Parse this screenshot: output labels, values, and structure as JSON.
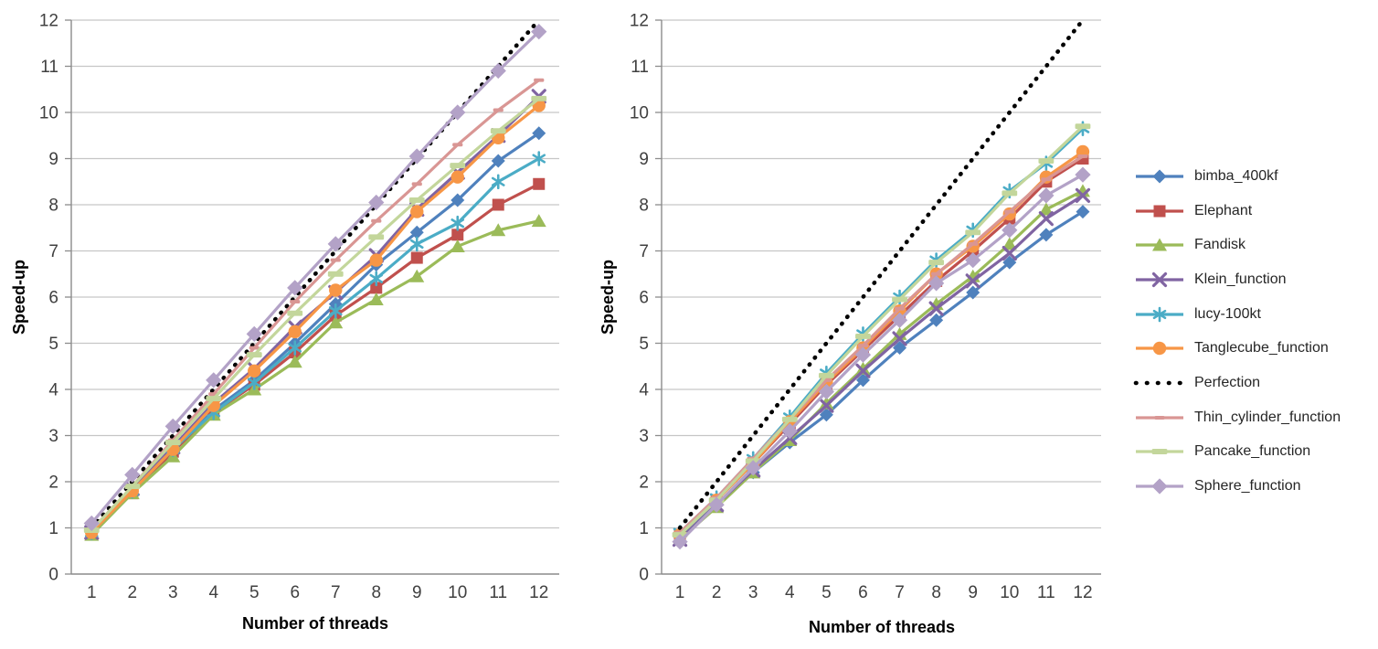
{
  "styles": {
    "background": "#FFFFFF",
    "grid_color": "#C6C6C6",
    "axis_color": "#8C8C8C",
    "tick_label_color": "#404040",
    "text_color": "#000000"
  },
  "chart_data": [
    {
      "type": "line",
      "title": "",
      "xlabel": "Number of threads",
      "ylabel": "Speed-up",
      "x": [
        1,
        2,
        3,
        4,
        5,
        6,
        7,
        8,
        9,
        10,
        11,
        12
      ],
      "ylim": [
        0,
        12
      ],
      "yticks": [
        0,
        1,
        2,
        3,
        4,
        5,
        6,
        7,
        8,
        9,
        10,
        11,
        12
      ],
      "grid": true,
      "legend_position": "right",
      "series": [
        {
          "name": "bimba_400kf",
          "color": "#4F81BD",
          "marker": "diamond",
          "marker_scale": 1,
          "values": [
            0.9,
            1.8,
            2.65,
            3.55,
            4.2,
            5.0,
            5.85,
            6.7,
            7.4,
            8.1,
            8.95,
            9.55
          ]
        },
        {
          "name": "Elephant",
          "color": "#C0504D",
          "marker": "square",
          "marker_scale": 1,
          "values": [
            0.9,
            1.75,
            2.65,
            3.5,
            4.1,
            4.8,
            5.6,
            6.2,
            6.85,
            7.35,
            8.0,
            8.45
          ]
        },
        {
          "name": "Fandisk",
          "color": "#9BBB59",
          "marker": "triangle",
          "marker_scale": 1,
          "values": [
            0.85,
            1.75,
            2.55,
            3.45,
            4.0,
            4.6,
            5.45,
            5.95,
            6.45,
            7.1,
            7.45,
            7.65
          ]
        },
        {
          "name": "Klein_function",
          "color": "#8064A2",
          "marker": "x",
          "marker_scale": 1,
          "values": [
            0.9,
            1.85,
            2.75,
            3.7,
            4.45,
            5.35,
            6.1,
            6.9,
            7.9,
            8.7,
            9.5,
            10.35
          ]
        },
        {
          "name": "lucy-100kt",
          "color": "#4BACC6",
          "marker": "asterisk",
          "marker_scale": 1,
          "values": [
            0.9,
            1.8,
            2.7,
            3.5,
            4.15,
            4.9,
            5.7,
            6.4,
            7.15,
            7.6,
            8.5,
            9.0
          ]
        },
        {
          "name": "Tanglecube_function",
          "color": "#F79646",
          "marker": "circle",
          "marker_scale": 1,
          "values": [
            0.9,
            1.8,
            2.7,
            3.65,
            4.4,
            5.25,
            6.15,
            6.8,
            7.85,
            8.6,
            9.45,
            10.15
          ]
        },
        {
          "name": "Perfection",
          "color": "#000000",
          "marker": "dotted",
          "marker_scale": 1,
          "values": [
            1,
            2,
            3,
            4,
            5,
            6,
            7,
            8,
            9,
            10,
            11,
            12
          ]
        },
        {
          "name": "Thin_cylinder_function",
          "color": "#D99694",
          "marker": "dash",
          "marker_scale": 0.7,
          "values": [
            0.95,
            1.9,
            2.9,
            3.9,
            4.9,
            5.9,
            6.8,
            7.65,
            8.45,
            9.3,
            10.05,
            10.7
          ]
        },
        {
          "name": "Pancake_function",
          "color": "#C3D69B",
          "marker": "dash",
          "marker_scale": 1.05,
          "values": [
            0.95,
            1.9,
            2.85,
            3.8,
            4.75,
            5.65,
            6.5,
            7.3,
            8.1,
            8.85,
            9.6,
            10.3
          ]
        },
        {
          "name": "Sphere_function",
          "color": "#B3A2C7",
          "marker": "diamond",
          "marker_scale": 1.15,
          "values": [
            1.1,
            2.15,
            3.2,
            4.2,
            5.2,
            6.2,
            7.15,
            8.05,
            9.05,
            10.0,
            10.9,
            11.75
          ]
        }
      ]
    },
    {
      "type": "line",
      "title": "",
      "xlabel": "Number of threads",
      "ylabel": "Speed-up",
      "x": [
        1,
        2,
        3,
        4,
        5,
        6,
        7,
        8,
        9,
        10,
        11,
        12
      ],
      "ylim": [
        0,
        12
      ],
      "yticks": [
        0,
        1,
        2,
        3,
        4,
        5,
        6,
        7,
        8,
        9,
        10,
        11,
        12
      ],
      "grid": true,
      "legend_position": "none",
      "series": [
        {
          "name": "bimba_400kf",
          "color": "#4F81BD",
          "marker": "diamond",
          "marker_scale": 1,
          "values": [
            0.8,
            1.5,
            2.2,
            2.85,
            3.45,
            4.2,
            4.9,
            5.5,
            6.1,
            6.75,
            7.35,
            7.85
          ]
        },
        {
          "name": "Elephant",
          "color": "#C0504D",
          "marker": "square",
          "marker_scale": 1,
          "values": [
            0.85,
            1.6,
            2.4,
            3.25,
            4.1,
            4.85,
            5.6,
            6.35,
            7.0,
            7.7,
            8.5,
            9.0
          ]
        },
        {
          "name": "Fandisk",
          "color": "#9BBB59",
          "marker": "triangle",
          "marker_scale": 1,
          "values": [
            0.75,
            1.45,
            2.2,
            2.9,
            3.7,
            4.45,
            5.2,
            5.85,
            6.45,
            7.15,
            7.9,
            8.3
          ]
        },
        {
          "name": "Klein_function",
          "color": "#8064A2",
          "marker": "x",
          "marker_scale": 1,
          "values": [
            0.75,
            1.5,
            2.25,
            2.95,
            3.65,
            4.4,
            5.1,
            5.75,
            6.35,
            6.95,
            7.7,
            8.2
          ]
        },
        {
          "name": "lucy-100kt",
          "color": "#4BACC6",
          "marker": "asterisk",
          "marker_scale": 1,
          "values": [
            0.9,
            1.65,
            2.5,
            3.4,
            4.35,
            5.2,
            6.0,
            6.8,
            7.45,
            8.3,
            8.9,
            9.65
          ]
        },
        {
          "name": "Tanglecube_function",
          "color": "#F79646",
          "marker": "circle",
          "marker_scale": 1,
          "values": [
            0.85,
            1.6,
            2.4,
            3.3,
            4.15,
            4.9,
            5.7,
            6.5,
            7.1,
            7.8,
            8.6,
            9.15
          ]
        },
        {
          "name": "Perfection",
          "color": "#000000",
          "marker": "dotted",
          "marker_scale": 1,
          "values": [
            1,
            2,
            3,
            4,
            5,
            6,
            7,
            8,
            9,
            10,
            11,
            12
          ]
        },
        {
          "name": "Thin_cylinder_function",
          "color": "#D99694",
          "marker": "dash",
          "marker_scale": 0.7,
          "values": [
            0.9,
            1.65,
            2.5,
            3.35,
            4.2,
            4.95,
            5.75,
            6.5,
            7.15,
            7.85,
            8.55,
            9.05
          ]
        },
        {
          "name": "Pancake_function",
          "color": "#C3D69B",
          "marker": "dash",
          "marker_scale": 1.05,
          "values": [
            0.85,
            1.6,
            2.45,
            3.35,
            4.3,
            5.15,
            5.95,
            6.75,
            7.4,
            8.25,
            8.95,
            9.7
          ]
        },
        {
          "name": "Sphere_function",
          "color": "#B3A2C7",
          "marker": "diamond",
          "marker_scale": 1.15,
          "values": [
            0.7,
            1.5,
            2.3,
            3.1,
            3.95,
            4.75,
            5.5,
            6.3,
            6.8,
            7.45,
            8.2,
            8.65
          ]
        }
      ]
    }
  ]
}
